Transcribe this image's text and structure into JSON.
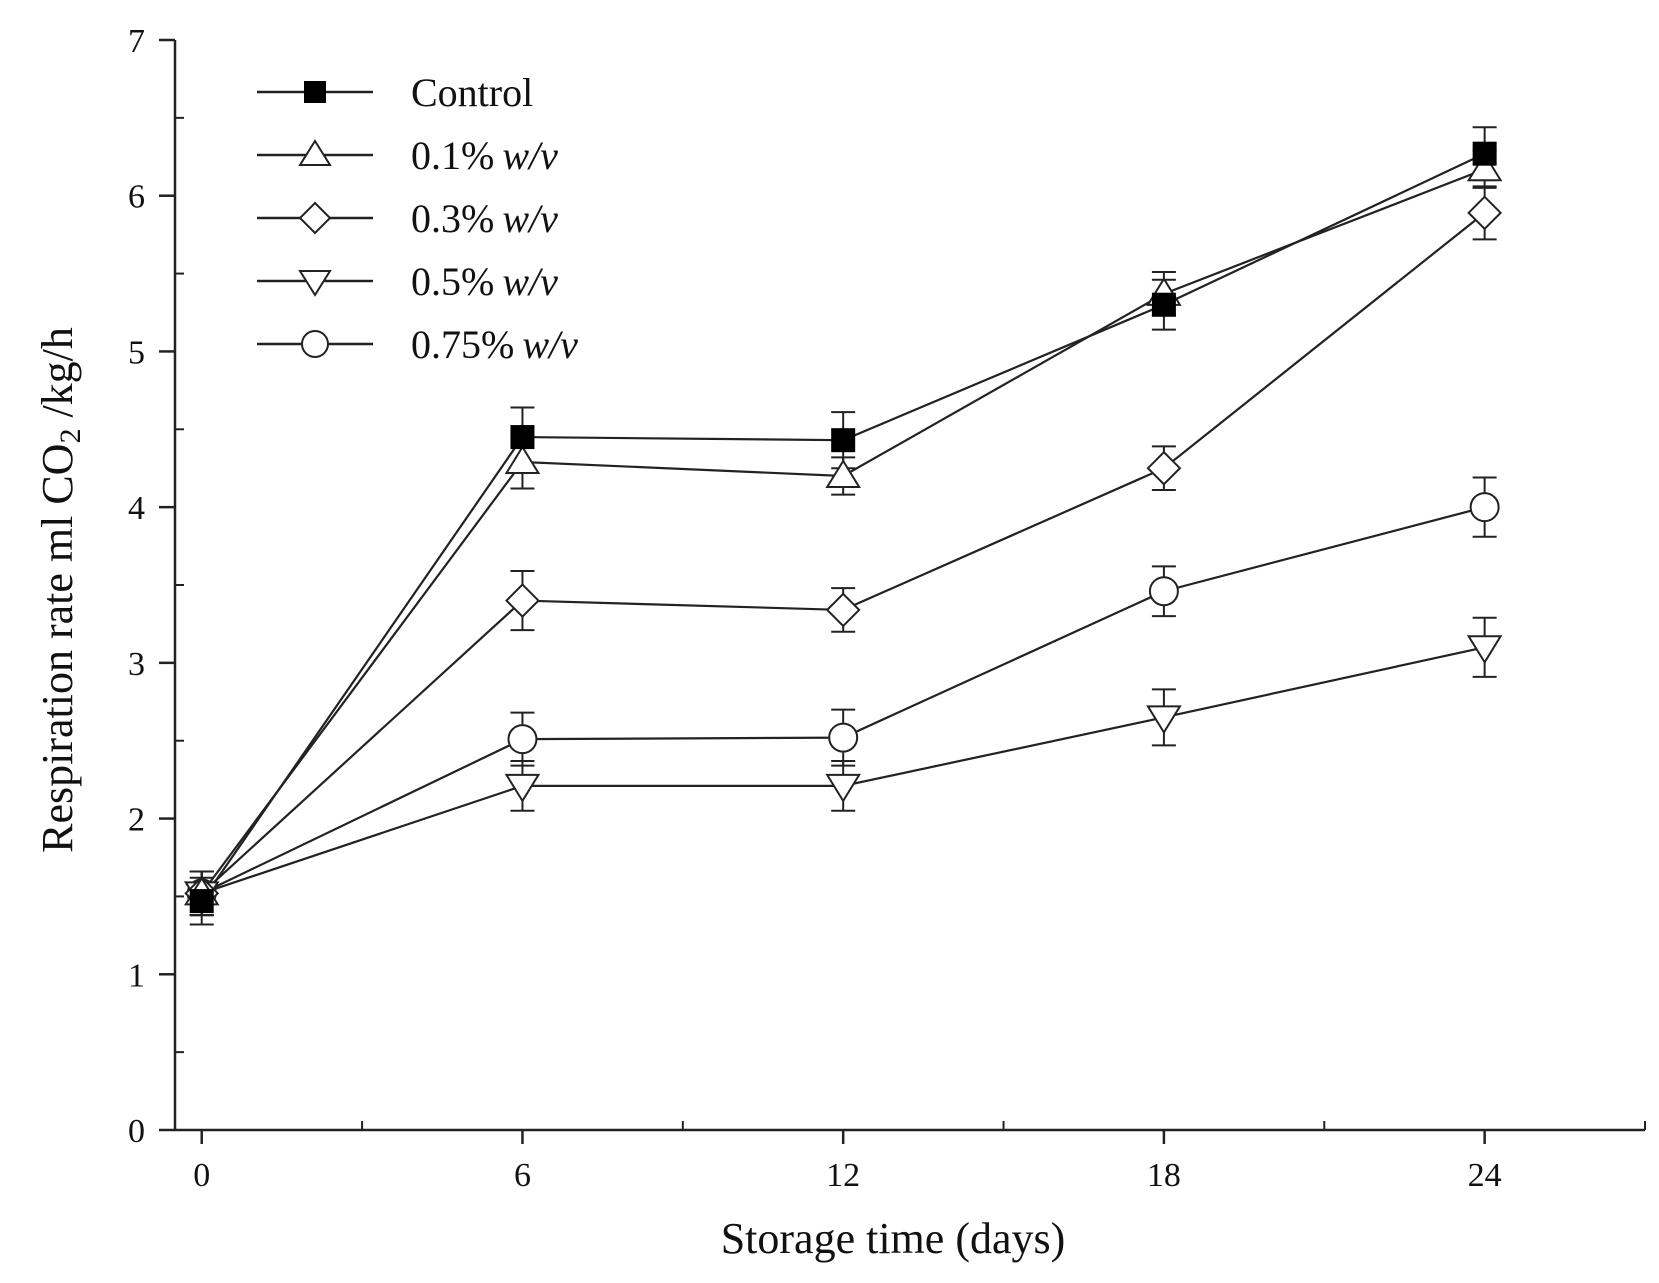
{
  "chart_data": {
    "type": "line",
    "title": "",
    "xlabel": "Storage time (days)",
    "ylabel": "Respiration rate ml CO₂ /kg/h",
    "ylabel_parts": [
      "Respiration rate ml CO",
      "2",
      " /kg/h"
    ],
    "xlim": [
      -0.5,
      27
    ],
    "ylim": [
      0,
      7
    ],
    "x": [
      0,
      6,
      12,
      18,
      24
    ],
    "x_ticks": [
      0,
      6,
      12,
      18,
      24
    ],
    "x_tick_labels": [
      "0",
      "6",
      "12",
      "18",
      "24"
    ],
    "x_minor_ticks": [
      3,
      9,
      15,
      21,
      27
    ],
    "y_ticks": [
      0,
      1,
      2,
      3,
      4,
      5,
      6,
      7
    ],
    "y_tick_labels": [
      "0",
      "1",
      "2",
      "3",
      "4",
      "5",
      "6",
      "7"
    ],
    "y_minor_ticks": [
      0.5,
      1.5,
      2.5,
      3.5,
      4.5,
      5.5,
      6.5
    ],
    "grid": false,
    "legend_position": "top-left",
    "series": [
      {
        "name": "Control",
        "label_main": "Control",
        "label_italic": "",
        "marker": "square-filled",
        "values": [
          1.47,
          4.45,
          4.43,
          5.3,
          6.27
        ],
        "errors": [
          0.15,
          0.19,
          0.18,
          0.16,
          0.17
        ]
      },
      {
        "name": "0.1% w/v",
        "label_main": "0.1%",
        "label_italic": "w/v",
        "marker": "triangle-up",
        "values": [
          1.52,
          4.29,
          4.2,
          5.37,
          6.17
        ],
        "errors": [
          0.14,
          0.17,
          0.12,
          0.14,
          0.12
        ]
      },
      {
        "name": "0.3% w/v",
        "label_main": "0.3%",
        "label_italic": "w/v",
        "marker": "diamond",
        "values": [
          1.52,
          3.4,
          3.34,
          4.25,
          5.89
        ],
        "errors": [
          0.14,
          0.19,
          0.14,
          0.14,
          0.17
        ]
      },
      {
        "name": "0.5% w/v",
        "label_main": "0.5%",
        "label_italic": "w/v",
        "marker": "triangle-down",
        "values": [
          1.52,
          2.21,
          2.21,
          2.65,
          3.1
        ],
        "errors": [
          0.14,
          0.16,
          0.16,
          0.18,
          0.19
        ]
      },
      {
        "name": "0.75% w/v",
        "label_main": "0.75%",
        "label_italic": "w/v",
        "marker": "circle",
        "values": [
          1.52,
          2.51,
          2.52,
          3.46,
          4.0
        ],
        "errors": [
          0.14,
          0.17,
          0.18,
          0.16,
          0.19
        ]
      }
    ],
    "colors": {
      "line": "#222222",
      "marker_fill": "#ffffff",
      "marker_filled": "#000000",
      "axis": "#222222"
    }
  }
}
